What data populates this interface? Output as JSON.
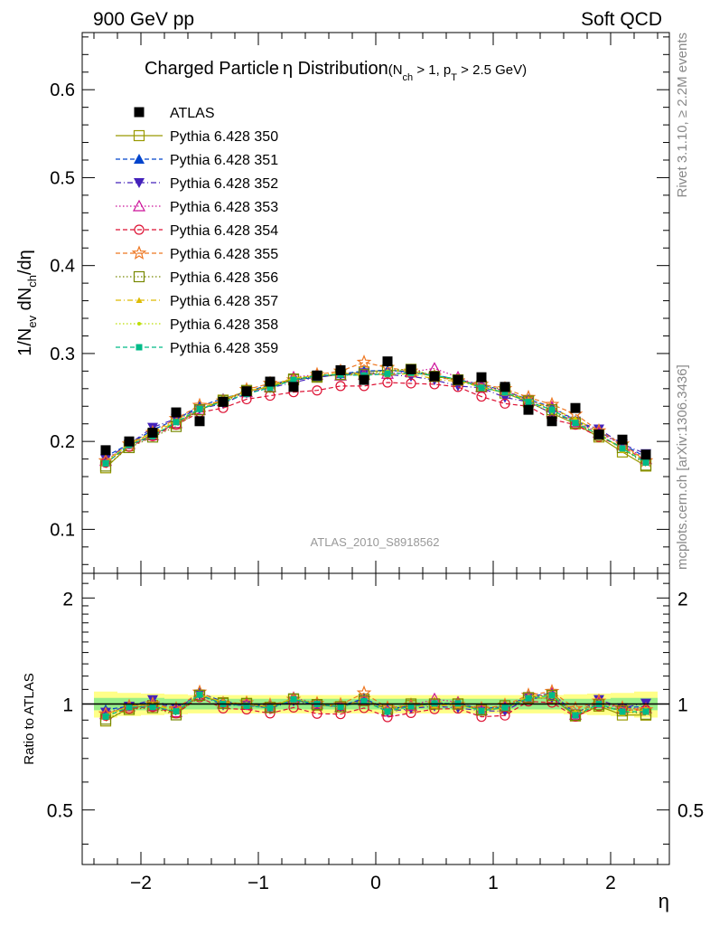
{
  "header": {
    "left": "900 GeV pp",
    "right": "Soft QCD"
  },
  "side_text": {
    "rivet": "Rivet 3.1.10, ≥ 2.2M events",
    "mcplots": "mcplots.cern.ch [arXiv:1306.3436]"
  },
  "analysis_id": "ATLAS_2010_S8918562",
  "chart_data": [
    {
      "type": "scatter",
      "panel": "main",
      "title": {
        "main": "Charged Particle",
        "eta": "η",
        "main2": " Distribution",
        "cond_open": "(N",
        "cond_sub1": "ch",
        "cond_mid": " > 1, p",
        "cond_sub2": "T",
        "cond_end": " > 2.5 GeV)"
      },
      "ylabel": {
        "a": "1/N",
        "a_sub": "ev",
        "b": " dN",
        "b_sub": "ch",
        "c": "/dη"
      },
      "xlim": [
        -2.5,
        2.5
      ],
      "ylim": [
        0.05,
        0.665
      ],
      "yticks": [
        0.1,
        0.2,
        0.3,
        0.4,
        0.5,
        0.6
      ],
      "ytick_labels": [
        "0.1",
        "0.2",
        "0.3",
        "0.4",
        "0.5",
        "0.6"
      ],
      "x": [
        -2.3,
        -2.1,
        -1.9,
        -1.7,
        -1.5,
        -1.3,
        -1.1,
        -0.9,
        -0.7,
        -0.5,
        -0.3,
        -0.1,
        0.1,
        0.3,
        0.5,
        0.7,
        0.9,
        1.1,
        1.3,
        1.5,
        1.7,
        1.9,
        2.1,
        2.3
      ],
      "series": [
        {
          "name": "ATLAS",
          "color": "#000000",
          "marker": "square-filled",
          "line": "none",
          "values": [
            0.19,
            0.2,
            0.21,
            0.233,
            0.223,
            0.245,
            0.257,
            0.268,
            0.262,
            0.275,
            0.281,
            0.27,
            0.291,
            0.282,
            0.274,
            0.27,
            0.273,
            0.262,
            0.236,
            0.223,
            0.238,
            0.208,
            0.202,
            0.185
          ]
        },
        {
          "name": "Pythia 6.428 350",
          "color": "#999900",
          "marker": "square-open",
          "line": "solid",
          "values": [
            0.17,
            0.195,
            0.208,
            0.22,
            0.236,
            0.247,
            0.257,
            0.262,
            0.27,
            0.273,
            0.276,
            0.279,
            0.281,
            0.279,
            0.274,
            0.27,
            0.262,
            0.255,
            0.245,
            0.232,
            0.22,
            0.205,
            0.188,
            0.172
          ]
        },
        {
          "name": "Pythia 6.428 351",
          "color": "#0044cc",
          "marker": "triangle-up-filled",
          "line": "dashed",
          "values": [
            0.183,
            0.197,
            0.213,
            0.225,
            0.24,
            0.249,
            0.256,
            0.265,
            0.27,
            0.273,
            0.277,
            0.28,
            0.281,
            0.279,
            0.276,
            0.27,
            0.265,
            0.257,
            0.248,
            0.239,
            0.224,
            0.211,
            0.197,
            0.182
          ]
        },
        {
          "name": "Pythia 6.428 352",
          "color": "#4422bb",
          "marker": "triangle-down-filled",
          "line": "dashdot",
          "values": [
            0.18,
            0.197,
            0.216,
            0.226,
            0.237,
            0.243,
            0.255,
            0.261,
            0.267,
            0.273,
            0.276,
            0.278,
            0.276,
            0.274,
            0.27,
            0.263,
            0.261,
            0.25,
            0.245,
            0.232,
            0.223,
            0.214,
            0.197,
            0.186
          ]
        },
        {
          "name": "Pythia 6.428 353",
          "color": "#cc1199",
          "marker": "triangle-up-open",
          "line": "dotted",
          "values": [
            0.178,
            0.197,
            0.207,
            0.221,
            0.236,
            0.246,
            0.256,
            0.262,
            0.273,
            0.276,
            0.275,
            0.276,
            0.277,
            0.279,
            0.283,
            0.273,
            0.262,
            0.258,
            0.246,
            0.239,
            0.222,
            0.21,
            0.196,
            0.18
          ]
        },
        {
          "name": "Pythia 6.428 354",
          "color": "#dd1133",
          "marker": "circle-open",
          "line": "dashed",
          "values": [
            0.176,
            0.194,
            0.206,
            0.219,
            0.233,
            0.238,
            0.248,
            0.252,
            0.256,
            0.258,
            0.263,
            0.263,
            0.267,
            0.266,
            0.265,
            0.262,
            0.251,
            0.243,
            0.24,
            0.225,
            0.219,
            0.205,
            0.194,
            0.178
          ]
        },
        {
          "name": "Pythia 6.428 355",
          "color": "#ee7722",
          "marker": "star-open",
          "line": "dashed",
          "values": [
            0.178,
            0.197,
            0.21,
            0.226,
            0.241,
            0.246,
            0.259,
            0.266,
            0.27,
            0.276,
            0.28,
            0.29,
            0.284,
            0.28,
            0.274,
            0.269,
            0.265,
            0.26,
            0.25,
            0.242,
            0.231,
            0.212,
            0.197,
            0.178
          ]
        },
        {
          "name": "Pythia 6.428 356",
          "color": "#778800",
          "marker": "square-open",
          "line": "dotted",
          "values": [
            0.172,
            0.193,
            0.205,
            0.217,
            0.236,
            0.246,
            0.258,
            0.262,
            0.271,
            0.274,
            0.276,
            0.276,
            0.281,
            0.282,
            0.274,
            0.27,
            0.263,
            0.259,
            0.246,
            0.236,
            0.221,
            0.207,
            0.193,
            0.173
          ]
        },
        {
          "name": "Pythia 6.428 357",
          "color": "#ddbb00",
          "marker": "tri-small",
          "line": "dashdot",
          "values": [
            0.175,
            0.198,
            0.21,
            0.222,
            0.237,
            0.248,
            0.257,
            0.263,
            0.272,
            0.275,
            0.278,
            0.276,
            0.276,
            0.277,
            0.271,
            0.268,
            0.262,
            0.255,
            0.248,
            0.237,
            0.226,
            0.21,
            0.19,
            0.178
          ]
        },
        {
          "name": "Pythia 6.428 358",
          "color": "#bbdd00",
          "marker": "dot-small",
          "line": "dotted",
          "values": [
            0.177,
            0.197,
            0.209,
            0.224,
            0.237,
            0.245,
            0.256,
            0.263,
            0.272,
            0.275,
            0.276,
            0.275,
            0.28,
            0.282,
            0.275,
            0.27,
            0.261,
            0.257,
            0.245,
            0.233,
            0.224,
            0.207,
            0.193,
            0.179
          ]
        },
        {
          "name": "Pythia 6.428 359",
          "color": "#00bb88",
          "marker": "square-small-filled",
          "line": "dashed",
          "values": [
            0.175,
            0.196,
            0.206,
            0.222,
            0.237,
            0.245,
            0.254,
            0.261,
            0.27,
            0.275,
            0.276,
            0.275,
            0.277,
            0.278,
            0.275,
            0.271,
            0.261,
            0.256,
            0.245,
            0.236,
            0.221,
            0.208,
            0.192,
            0.176
          ]
        }
      ]
    },
    {
      "type": "line",
      "panel": "ratio",
      "ylabel": "Ratio to ATLAS",
      "xlabel": "η",
      "xlim": [
        -2.5,
        2.5
      ],
      "ylim": [
        0.35,
        2.35
      ],
      "yticks": [
        0.5,
        1,
        2
      ],
      "ytick_labels": [
        "0.5",
        "1",
        "2"
      ],
      "xticks": [
        -2,
        -1,
        0,
        1,
        2
      ],
      "xtick_labels": [
        "−2",
        "−1",
        "0",
        "1",
        "2"
      ],
      "reference": 1,
      "band_colors": {
        "inner": "#99ee88",
        "outer": "#ffff88"
      },
      "band_inner": [
        0.04,
        0.04,
        0.04,
        0.035,
        0.035,
        0.035,
        0.035,
        0.035,
        0.035,
        0.035,
        0.035,
        0.035,
        0.035,
        0.035,
        0.035,
        0.035,
        0.035,
        0.035,
        0.035,
        0.035,
        0.035,
        0.035,
        0.04,
        0.04
      ],
      "band_outer": [
        0.085,
        0.075,
        0.07,
        0.065,
        0.06,
        0.06,
        0.06,
        0.06,
        0.06,
        0.06,
        0.06,
        0.06,
        0.06,
        0.06,
        0.06,
        0.06,
        0.06,
        0.06,
        0.06,
        0.06,
        0.065,
        0.07,
        0.075,
        0.085
      ]
    }
  ]
}
